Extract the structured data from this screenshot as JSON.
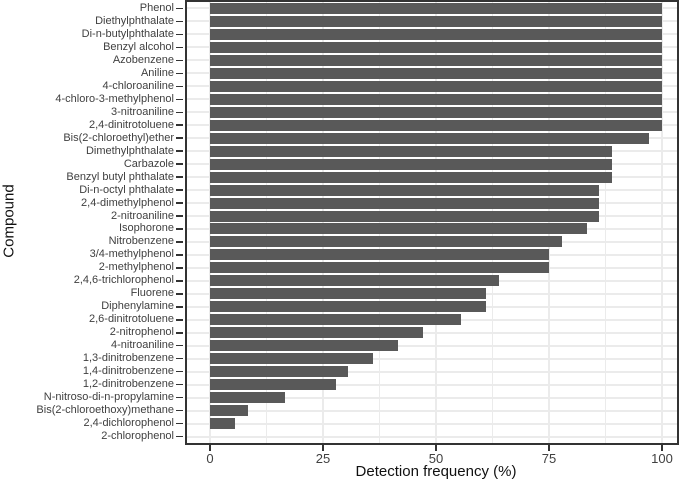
{
  "chart_data": {
    "type": "bar",
    "orientation": "horizontal",
    "title": "",
    "xlabel": "Detection frequency (%)",
    "ylabel": "Compound",
    "xlim": [
      0,
      100
    ],
    "x_major_ticks": [
      0,
      25,
      50,
      75,
      100
    ],
    "x_tick_labels": [
      "0",
      "25",
      "50",
      "75",
      "100"
    ],
    "x_minor_gridlines": [
      12.5,
      37.5,
      62.5,
      87.5
    ],
    "grid": true,
    "legend_position": "none",
    "colors": {
      "bar_fill": "#595959",
      "gridline": "#ebebeb",
      "panel_border": "#333333",
      "tick_label": "#404040",
      "axis_title": "#111111",
      "background": "#ffffff"
    },
    "categories": [
      "Phenol",
      "Diethylphthalate",
      "Di-n-butylphthalate",
      "Benzyl alcohol",
      "Azobenzene",
      "Aniline",
      "4-chloroaniline",
      "4-chloro-3-methylphenol",
      "3-nitroaniline",
      "2,4-dinitrotoluene",
      "Bis(2-chloroethyl)ether",
      "Dimethylphthalate",
      "Carbazole",
      "Benzyl butyl phthalate",
      "Di-n-octyl phthalate",
      "2,4-dimethylphenol",
      "2-nitroaniline",
      "Isophorone",
      "Nitrobenzene",
      "3/4-methylphenol",
      "2-methylphenol",
      "2,4,6-trichlorophenol",
      "Fluorene",
      "Diphenylamine",
      "2,6-dinitrotoluene",
      "2-nitrophenol",
      "4-nitroaniline",
      "1,3-dinitrobenzene",
      "1,4-dinitrobenzene",
      "1,2-dinitrobenzene",
      "N-nitroso-di-n-propylamine",
      "Bis(2-chloroethoxy)methane",
      "2,4-dichlorophenol",
      "2-chlorophenol"
    ],
    "values": [
      100,
      100,
      100,
      100,
      100,
      100,
      100,
      100,
      100,
      100,
      97.2,
      88.9,
      88.9,
      88.9,
      86.1,
      86.1,
      86.1,
      83.3,
      77.8,
      75,
      75,
      63.9,
      61.1,
      61.1,
      55.6,
      47.2,
      41.7,
      36.1,
      30.6,
      27.8,
      16.7,
      8.3,
      5.6,
      0
    ]
  }
}
